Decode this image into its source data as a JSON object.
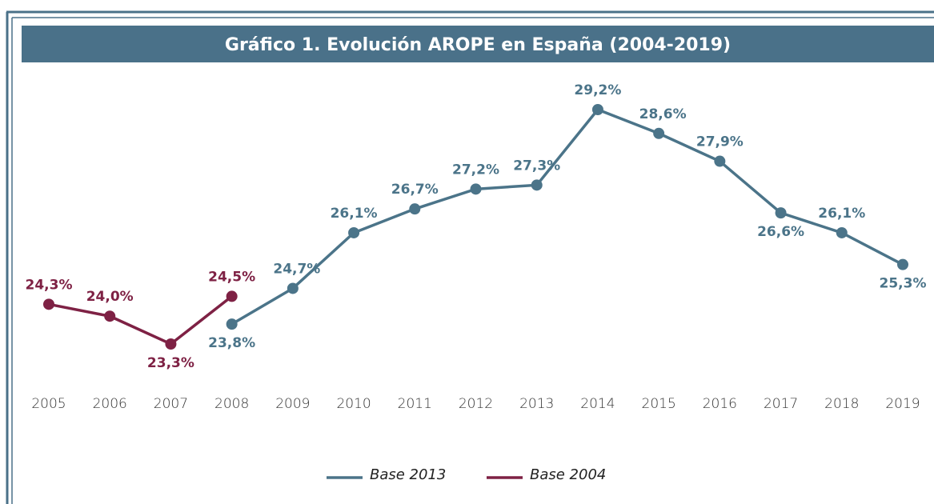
{
  "chart_data": {
    "type": "line",
    "title": "Gráfico 1. Evolución AROPE en España (2004-2019)",
    "categories": [
      "2005",
      "2006",
      "2007",
      "2008",
      "2009",
      "2010",
      "2011",
      "2012",
      "2013",
      "2014",
      "2015",
      "2016",
      "2017",
      "2018",
      "2019"
    ],
    "series": [
      {
        "name": "Base 2013",
        "color": "#4b7489",
        "values": [
          null,
          null,
          null,
          23.8,
          24.7,
          26.1,
          26.7,
          27.2,
          27.3,
          29.2,
          28.6,
          27.9,
          26.6,
          26.1,
          25.3
        ],
        "value_labels": [
          null,
          null,
          null,
          "23,8%",
          "24,7%",
          "26,1%",
          "26,7%",
          "27,2%",
          "27,3%",
          "29,2%",
          "28,6%",
          "27,9%",
          "26,6%",
          "26,1%",
          "25,3%"
        ]
      },
      {
        "name": "Base 2004",
        "color": "#7e2144",
        "values": [
          24.3,
          24.0,
          23.3,
          24.5,
          null,
          null,
          null,
          null,
          null,
          null,
          null,
          null,
          null,
          null,
          null
        ],
        "value_labels": [
          "24,3%",
          "24,0%",
          "23,3%",
          "24,5%",
          null,
          null,
          null,
          null,
          null,
          null,
          null,
          null,
          null,
          null,
          null
        ]
      }
    ]
  }
}
